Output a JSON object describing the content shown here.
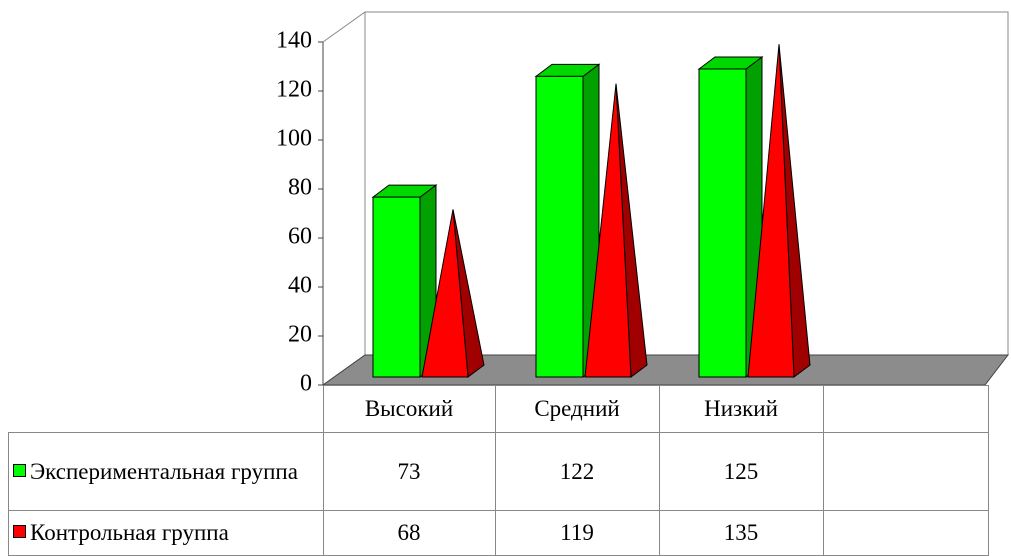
{
  "chart_data": {
    "type": "bar3d",
    "categories": [
      "Высокий",
      "Средний",
      "Низкий",
      null
    ],
    "series": [
      {
        "name": "Экспериментальная группа",
        "color": "#00ff00",
        "shape": "box",
        "values": [
          73,
          122,
          125,
          null
        ]
      },
      {
        "name": "Контрольная группа",
        "color": "#ff0000",
        "shape": "pyramid",
        "values": [
          68,
          119,
          135,
          null
        ]
      }
    ],
    "ylim": [
      0,
      140
    ],
    "yticks": [
      0,
      20,
      40,
      60,
      80,
      100,
      120,
      140
    ]
  }
}
